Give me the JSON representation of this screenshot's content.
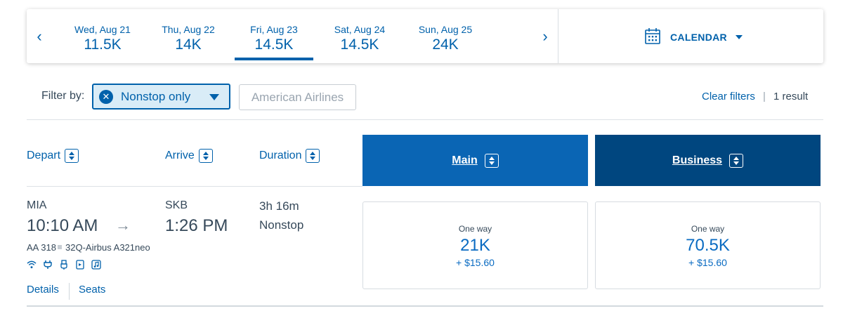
{
  "date_strip": {
    "prev_label": "‹",
    "next_label": "›",
    "dates": [
      {
        "label": "Wed, Aug 21",
        "price": "11.5K",
        "selected": false
      },
      {
        "label": "Thu, Aug 22",
        "price": "14K",
        "selected": false
      },
      {
        "label": "Fri, Aug 23",
        "price": "14.5K",
        "selected": true
      },
      {
        "label": "Sat, Aug 24",
        "price": "14.5K",
        "selected": false
      },
      {
        "label": "Sun, Aug 25",
        "price": "24K",
        "selected": false
      }
    ],
    "calendar_label": "CALENDAR"
  },
  "filters": {
    "label": "Filter by:",
    "active_filter": "Nonstop only",
    "airline_filter": "American Airlines",
    "clear_label": "Clear filters",
    "separator": "|",
    "result_count": "1 result"
  },
  "columns": {
    "depart": "Depart",
    "arrive": "Arrive",
    "duration": "Duration",
    "main": "Main",
    "business": "Business"
  },
  "flight": {
    "origin": "MIA",
    "depart_time": "10:10 AM",
    "destination": "SKB",
    "arrive_time": "1:26 PM",
    "duration": "3h 16m",
    "stops": "Nonstop",
    "flight_number": "AA 318",
    "aircraft": "32Q-Airbus A321neo",
    "amenities": [
      "wifi-icon",
      "power-outlet-icon",
      "usb-icon",
      "mobile-device-icon",
      "music-icon"
    ],
    "links": {
      "details": "Details",
      "seats": "Seats"
    },
    "fares": {
      "main": {
        "type": "One way",
        "miles": "21K",
        "fee": "+ $15.60"
      },
      "business": {
        "type": "One way",
        "miles": "70.5K",
        "fee": "+ $15.60"
      }
    }
  },
  "colors": {
    "brand_blue": "#0061ab",
    "main_header": "#0a65b4",
    "business_header": "#00467f",
    "chip_bg": "#d9ecf7"
  }
}
